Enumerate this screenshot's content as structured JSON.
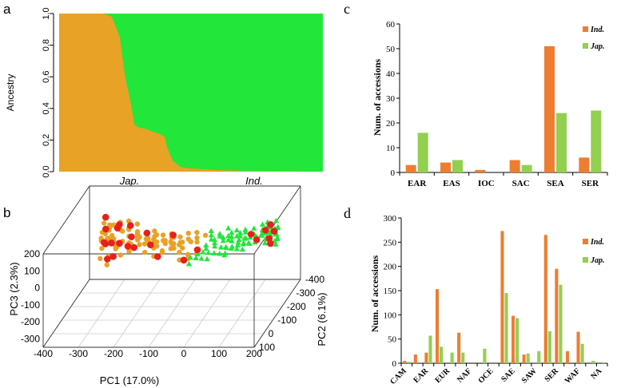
{
  "colors": {
    "orange": "#E8A225",
    "green": "#22E63A",
    "red": "#E8201A",
    "bar_ind": "#ED7D31",
    "bar_jap": "#92D050",
    "axis": "#000000",
    "box": "#333333"
  },
  "panels": {
    "a": "a",
    "b": "b",
    "c": "c",
    "d": "d"
  },
  "chart_data": [
    {
      "id": "a",
      "type": "area",
      "title": "",
      "xlabel": "",
      "ylabel": "Ancestry",
      "ylim": [
        0,
        1
      ],
      "yticks": [
        "0.0",
        "0.2",
        "0.4",
        "0.6",
        "0.8",
        "1.0"
      ],
      "x_group_labels": [
        "Jap.",
        "Ind."
      ],
      "series": [
        {
          "name": "Jap. ancestry (orange)",
          "color_key": "orange",
          "x": [
            0,
            0.17,
            0.2,
            0.23,
            0.25,
            0.27,
            0.285,
            0.3,
            0.33,
            0.36,
            0.38,
            0.4,
            0.41,
            0.43,
            0.46,
            0.5,
            0.55,
            0.6,
            0.7,
            0.8,
            0.9,
            1.0
          ],
          "values": [
            1.0,
            1.0,
            0.98,
            0.85,
            0.6,
            0.45,
            0.3,
            0.28,
            0.27,
            0.25,
            0.24,
            0.22,
            0.15,
            0.07,
            0.03,
            0.02,
            0.015,
            0.01,
            0.005,
            0.003,
            0.001,
            0.0
          ]
        },
        {
          "name": "Ind. ancestry (green)",
          "color_key": "green",
          "note": "fills remainder to 1.0"
        }
      ]
    },
    {
      "id": "b",
      "type": "scatter",
      "title": "",
      "xlabel": "PC1 (17.0%)",
      "ylabel": "PC3 (2.3%)",
      "zlabel": "PC2 (6.1%)",
      "xticks": [
        "-400",
        "-300",
        "-200",
        "-100",
        "0",
        "100",
        "200"
      ],
      "yticks": [
        "-300",
        "-200",
        "-100",
        "0",
        "100",
        "200"
      ],
      "zticks": [
        "-400",
        "-300",
        "-200",
        "-100",
        "0",
        "100"
      ],
      "series": [
        {
          "name": "Jap.",
          "marker": "circle",
          "color_key": "orange",
          "points": [
            [
              -300,
              185
            ],
            [
              -295,
              175
            ],
            [
              -290,
              150
            ],
            [
              -285,
              120
            ],
            [
              -280,
              100
            ],
            [
              -290,
              60
            ],
            [
              -300,
              30
            ],
            [
              -295,
              0
            ],
            [
              -285,
              -30
            ],
            [
              -280,
              -50
            ],
            [
              -270,
              20
            ],
            [
              -265,
              90
            ],
            [
              -260,
              140
            ],
            [
              -250,
              175
            ],
            [
              -240,
              160
            ],
            [
              -230,
              130
            ],
            [
              -220,
              110
            ],
            [
              -210,
              100
            ],
            [
              -200,
              110
            ],
            [
              -190,
              105
            ],
            [
              -180,
              100
            ],
            [
              -170,
              98
            ],
            [
              -160,
              102
            ],
            [
              -150,
              100
            ],
            [
              -140,
              97
            ],
            [
              -130,
              95
            ],
            [
              -120,
              92
            ],
            [
              -110,
              90
            ],
            [
              -100,
              95
            ],
            [
              -90,
              90
            ],
            [
              -80,
              88
            ],
            [
              -70,
              85
            ],
            [
              -160,
              60
            ],
            [
              -150,
              40
            ],
            [
              -140,
              20
            ],
            [
              -130,
              10
            ],
            [
              -120,
              30
            ],
            [
              -110,
              50
            ],
            [
              -100,
              40
            ],
            [
              -90,
              20
            ],
            [
              -80,
              5
            ],
            [
              -70,
              -10
            ],
            [
              -60,
              -20
            ],
            [
              -50,
              -15
            ],
            [
              -40,
              -5
            ],
            [
              -30,
              0
            ],
            [
              -250,
              60
            ],
            [
              -260,
              30
            ],
            [
              -240,
              10
            ],
            [
              -230,
              -10
            ],
            [
              -220,
              40
            ],
            [
              -200,
              70
            ],
            [
              -180,
              50
            ],
            [
              -170,
              30
            ],
            [
              -60,
              100
            ],
            [
              -50,
              95
            ],
            [
              -40,
              92
            ],
            [
              -30,
              90
            ],
            [
              -20,
              95
            ],
            [
              -10,
              92
            ],
            [
              -285,
              130
            ],
            [
              -275,
              140
            ],
            [
              -265,
              60
            ],
            [
              -255,
              100
            ],
            [
              -245,
              120
            ],
            [
              -235,
              90
            ],
            [
              -225,
              75
            ],
            [
              -215,
              60
            ],
            [
              -205,
              80
            ],
            [
              -195,
              90
            ],
            [
              -185,
              75
            ],
            [
              -175,
              70
            ],
            [
              -165,
              85
            ],
            [
              -155,
              78
            ],
            [
              -145,
              65
            ],
            [
              -135,
              70
            ],
            [
              -125,
              60
            ],
            [
              -115,
              72
            ],
            [
              -105,
              66
            ],
            [
              -95,
              58
            ],
            [
              -85,
              62
            ],
            [
              -75,
              55
            ],
            [
              -65,
              50
            ],
            [
              -55,
              45
            ],
            [
              -300,
              95
            ],
            [
              -290,
              110
            ],
            [
              -280,
              160
            ],
            [
              -270,
              175
            ],
            [
              -230,
              170
            ],
            [
              -220,
              150
            ],
            [
              -210,
              140
            ],
            [
              -200,
              125
            ],
            [
              -190,
              120
            ]
          ]
        },
        {
          "name": "Ind.",
          "marker": "triangle",
          "color_key": "green",
          "points": [
            [
              0,
              100
            ],
            [
              10,
              105
            ],
            [
              20,
              110
            ],
            [
              30,
              100
            ],
            [
              40,
              115
            ],
            [
              50,
              120
            ],
            [
              60,
              105
            ],
            [
              70,
              110
            ],
            [
              80,
              125
            ],
            [
              90,
              120
            ],
            [
              100,
              115
            ],
            [
              110,
              130
            ],
            [
              120,
              125
            ],
            [
              130,
              140
            ],
            [
              140,
              135
            ],
            [
              150,
              150
            ],
            [
              160,
              145
            ],
            [
              170,
              155
            ],
            [
              180,
              150
            ],
            [
              190,
              160
            ],
            [
              195,
              140
            ],
            [
              200,
              130
            ],
            [
              190,
              120
            ],
            [
              180,
              110
            ],
            [
              185,
              90
            ],
            [
              195,
              80
            ],
            [
              200,
              70
            ],
            [
              190,
              60
            ],
            [
              180,
              70
            ],
            [
              175,
              95
            ],
            [
              170,
              115
            ],
            [
              160,
              130
            ],
            [
              150,
              120
            ],
            [
              140,
              110
            ],
            [
              130,
              100
            ],
            [
              120,
              90
            ],
            [
              110,
              80
            ],
            [
              100,
              70
            ],
            [
              90,
              60
            ],
            [
              80,
              50
            ],
            [
              70,
              40
            ],
            [
              60,
              30
            ],
            [
              50,
              20
            ],
            [
              40,
              15
            ],
            [
              30,
              10
            ],
            [
              20,
              5
            ],
            [
              10,
              0
            ],
            [
              0,
              -5
            ],
            [
              -10,
              -10
            ],
            [
              -20,
              -15
            ],
            [
              -30,
              -20
            ],
            [
              -40,
              -25
            ],
            [
              -50,
              -30
            ],
            [
              -20,
              20
            ],
            [
              -10,
              30
            ],
            [
              0,
              40
            ],
            [
              10,
              50
            ],
            [
              20,
              60
            ],
            [
              30,
              70
            ],
            [
              40,
              80
            ],
            [
              50,
              90
            ],
            [
              60,
              95
            ],
            [
              70,
              100
            ],
            [
              80,
              105
            ],
            [
              90,
              110
            ],
            [
              100,
              120
            ],
            [
              160,
              100
            ],
            [
              170,
              90
            ],
            [
              180,
              130
            ],
            [
              190,
              140
            ],
            [
              200,
              150
            ],
            [
              165,
              165
            ],
            [
              175,
              170
            ],
            [
              185,
              160
            ],
            [
              195,
              110
            ],
            [
              200,
              100
            ],
            [
              150,
              90
            ],
            [
              140,
              80
            ],
            [
              130,
              70
            ],
            [
              120,
              60
            ],
            [
              110,
              55
            ],
            [
              100,
              50
            ],
            [
              90,
              45
            ],
            [
              80,
              40
            ],
            [
              70,
              35
            ],
            [
              60,
              25
            ],
            [
              50,
              30
            ]
          ]
        },
        {
          "name": "Highlighted",
          "marker": "circle-large",
          "color_key": "red",
          "points": [
            [
              -300,
              180
            ],
            [
              -290,
              140
            ],
            [
              -285,
              90
            ],
            [
              -295,
              40
            ],
            [
              -280,
              -20
            ],
            [
              -265,
              120
            ],
            [
              -250,
              170
            ],
            [
              -240,
              90
            ],
            [
              -230,
              30
            ],
            [
              -210,
              115
            ],
            [
              -180,
              95
            ],
            [
              -160,
              55
            ],
            [
              -130,
              15
            ],
            [
              -100,
              100
            ],
            [
              -60,
              -18
            ],
            [
              -35,
              0
            ],
            [
              -270,
              70
            ],
            [
              -255,
              20
            ],
            [
              -220,
              160
            ],
            [
              -200,
              60
            ],
            [
              160,
              120
            ],
            [
              180,
              100
            ],
            [
              170,
              140
            ],
            [
              190,
              130
            ],
            [
              150,
              110
            ],
            [
              120,
              100
            ],
            [
              185,
              75
            ]
          ]
        }
      ]
    },
    {
      "id": "c",
      "type": "bar",
      "title": "",
      "xlabel": "",
      "ylabel": "Num. of accessions",
      "ylim": [
        0,
        60
      ],
      "yticks": [
        "0",
        "10",
        "20",
        "30",
        "40",
        "50",
        "60"
      ],
      "categories": [
        "EAR",
        "EAS",
        "IOC",
        "SAC",
        "SEA",
        "SER"
      ],
      "series": [
        {
          "name": "Ind.",
          "color_key": "bar_ind",
          "values": [
            3,
            4,
            1,
            5,
            51,
            6
          ]
        },
        {
          "name": "Jap.",
          "color_key": "bar_jap",
          "values": [
            16,
            5,
            0,
            3,
            24,
            25
          ]
        }
      ],
      "legend": [
        "Ind.",
        "Jap."
      ]
    },
    {
      "id": "d",
      "type": "bar",
      "title": "",
      "xlabel": "",
      "ylabel": "Num. of accessions",
      "ylim": [
        0,
        300
      ],
      "yticks": [
        "0",
        "50",
        "100",
        "150",
        "200",
        "250",
        "300"
      ],
      "categories": [
        "CAM",
        "",
        "EAR",
        "",
        "EUR",
        "",
        "NAF",
        "",
        "OCE",
        "",
        "SAE",
        "",
        "SAW",
        "",
        "SER",
        "",
        "WAF",
        "",
        "NA"
      ],
      "series": [
        {
          "name": "Ind.",
          "color_key": "bar_ind",
          "values": [
            5,
            18,
            22,
            153,
            0,
            63,
            0,
            0,
            0,
            273,
            98,
            18,
            0,
            265,
            195,
            25,
            65,
            0,
            0
          ]
        },
        {
          "name": "Jap.",
          "color_key": "bar_jap",
          "values": [
            3,
            0,
            57,
            34,
            22,
            22,
            0,
            30,
            0,
            145,
            93,
            20,
            25,
            66,
            162,
            0,
            40,
            5,
            2
          ]
        }
      ],
      "legend": [
        "Ind.",
        "Jap."
      ]
    }
  ]
}
